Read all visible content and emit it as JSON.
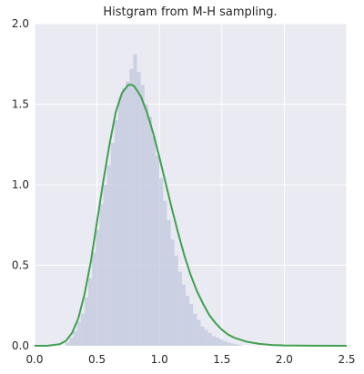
{
  "chart_data": {
    "type": "bar",
    "title": "Histgram from M-H sampling.",
    "xlabel": "",
    "ylabel": "",
    "xlim": [
      0.0,
      2.5
    ],
    "ylim": [
      0.0,
      2.0
    ],
    "xticks": [
      0.0,
      0.5,
      1.0,
      1.5,
      2.0,
      2.5
    ],
    "xtick_labels": [
      "0.0",
      "0.5",
      "1.0",
      "1.5",
      "2.0",
      "2.5"
    ],
    "yticks": [
      0.0,
      0.5,
      1.0,
      1.5,
      2.0
    ],
    "ytick_labels": [
      "0.0",
      "0.5",
      "1.0",
      "1.5",
      "2.0"
    ],
    "grid": true,
    "colors": {
      "plot_background": "#eaeaf2",
      "grid": "#ffffff",
      "histogram_fill": "#c5cbe0",
      "curve": "#3f9f4f"
    },
    "histogram": {
      "bin_edges": [
        0.25,
        0.28,
        0.31,
        0.34,
        0.37,
        0.4,
        0.43,
        0.46,
        0.49,
        0.52,
        0.55,
        0.58,
        0.61,
        0.64,
        0.67,
        0.7,
        0.73,
        0.76,
        0.79,
        0.82,
        0.85,
        0.88,
        0.91,
        0.94,
        0.97,
        1.0,
        1.03,
        1.06,
        1.09,
        1.12,
        1.15,
        1.18,
        1.21,
        1.24,
        1.27,
        1.3,
        1.33,
        1.36,
        1.39,
        1.42,
        1.45,
        1.48,
        1.51,
        1.54,
        1.57,
        1.6,
        1.63,
        1.66
      ],
      "densities": [
        0.02,
        0.05,
        0.09,
        0.15,
        0.2,
        0.3,
        0.42,
        0.58,
        0.72,
        0.88,
        1.0,
        1.12,
        1.26,
        1.4,
        1.54,
        1.6,
        1.64,
        1.72,
        1.81,
        1.7,
        1.62,
        1.5,
        1.42,
        1.3,
        1.18,
        1.04,
        0.9,
        0.78,
        0.66,
        0.56,
        0.46,
        0.38,
        0.31,
        0.26,
        0.2,
        0.16,
        0.12,
        0.1,
        0.08,
        0.06,
        0.05,
        0.04,
        0.03,
        0.02,
        0.015,
        0.01,
        0.005
      ]
    },
    "curve": {
      "name": "",
      "x": [
        0.0,
        0.1,
        0.2,
        0.25,
        0.3,
        0.35,
        0.4,
        0.45,
        0.5,
        0.55,
        0.6,
        0.65,
        0.7,
        0.75,
        0.78,
        0.8,
        0.85,
        0.9,
        0.95,
        1.0,
        1.05,
        1.1,
        1.15,
        1.2,
        1.25,
        1.3,
        1.35,
        1.4,
        1.45,
        1.5,
        1.55,
        1.6,
        1.7,
        1.8,
        1.9,
        2.0,
        2.2,
        2.5
      ],
      "y": [
        0.0,
        0.0,
        0.01,
        0.03,
        0.08,
        0.17,
        0.32,
        0.52,
        0.77,
        1.02,
        1.25,
        1.45,
        1.57,
        1.62,
        1.62,
        1.61,
        1.55,
        1.45,
        1.32,
        1.17,
        1.01,
        0.85,
        0.7,
        0.56,
        0.44,
        0.34,
        0.26,
        0.19,
        0.14,
        0.1,
        0.07,
        0.05,
        0.025,
        0.012,
        0.005,
        0.002,
        0.0005,
        0.0
      ]
    }
  }
}
